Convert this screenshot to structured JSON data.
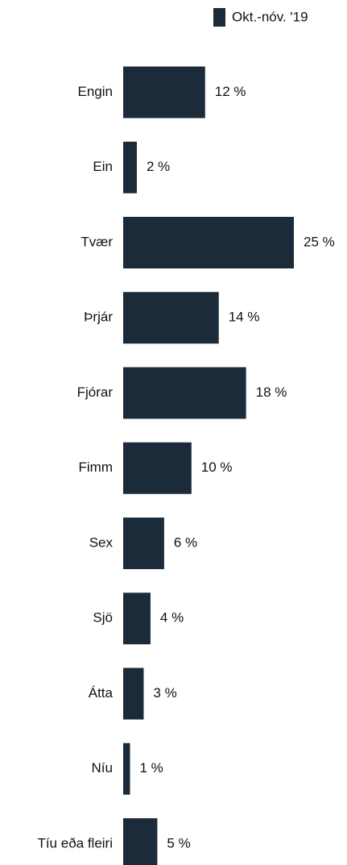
{
  "chart_data": {
    "type": "bar",
    "orientation": "horizontal",
    "categories": [
      "Engin",
      "Ein",
      "Tvær",
      "Þrjár",
      "Fjórar",
      "Fimm",
      "Sex",
      "Sjö",
      "Átta",
      "Níu",
      "Tíu eða fleiri"
    ],
    "series": [
      {
        "name": "Okt.-nóv. '19",
        "color": "#1c2b39",
        "values": [
          12,
          2,
          25,
          14,
          18,
          10,
          6,
          4,
          3,
          1,
          5
        ],
        "value_labels": [
          "12 %",
          "2 %",
          "25 %",
          "14 %",
          "18 %",
          "10 %",
          "6 %",
          "4 %",
          "3 %",
          "1 %",
          "5 %"
        ]
      }
    ]
  }
}
